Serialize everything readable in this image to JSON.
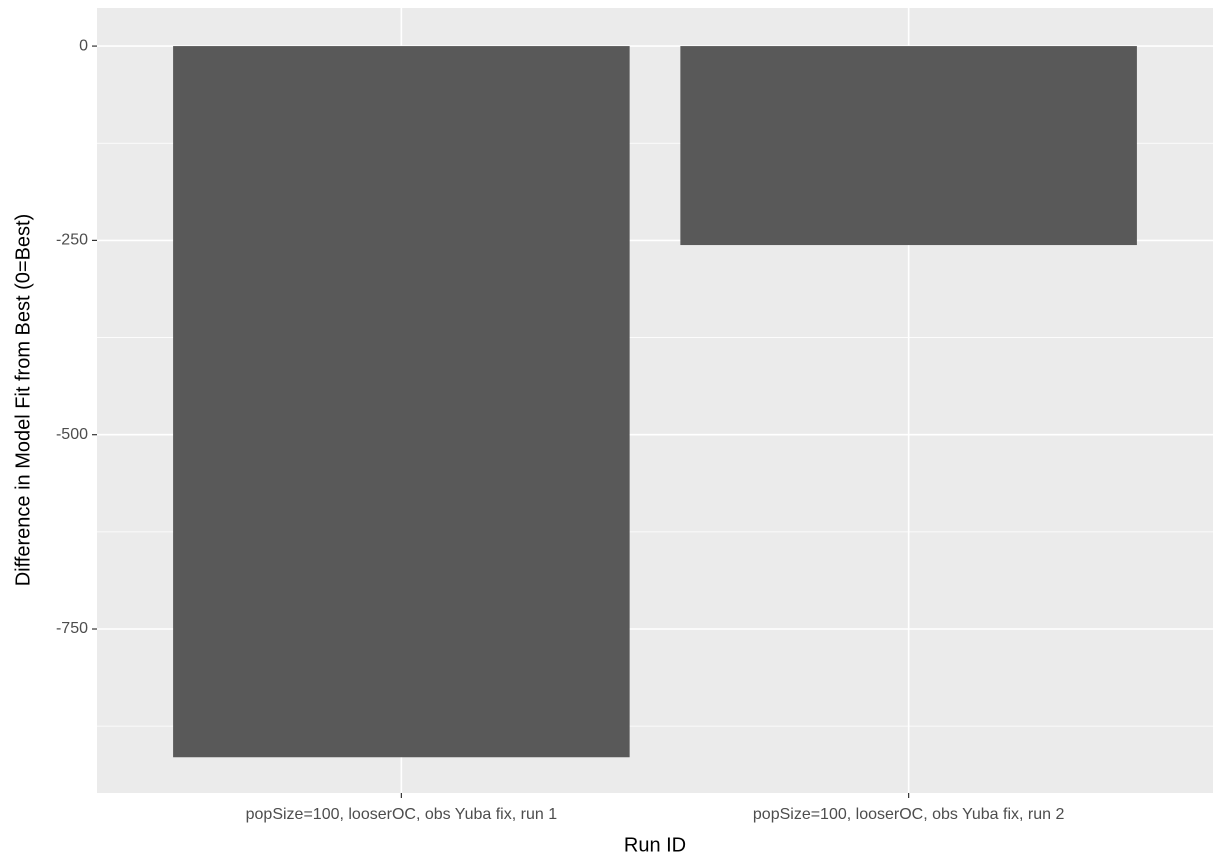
{
  "chart_data": {
    "type": "bar",
    "x_label": "Run ID",
    "y_label": "Difference in Model Fit from Best (0=Best)",
    "categories": [
      "popSize=100, looserOC, obs Yuba fix, run 1",
      "popSize=100, looserOC, obs Yuba fix, run 2"
    ],
    "values": [
      -915,
      -256
    ],
    "color": "#595959",
    "ylim": [
      -961,
      49
    ],
    "yticks": [
      0,
      -250,
      -500,
      -750
    ],
    "minor_yticks": [
      -125,
      -375,
      -625,
      -875
    ],
    "grid": true
  }
}
